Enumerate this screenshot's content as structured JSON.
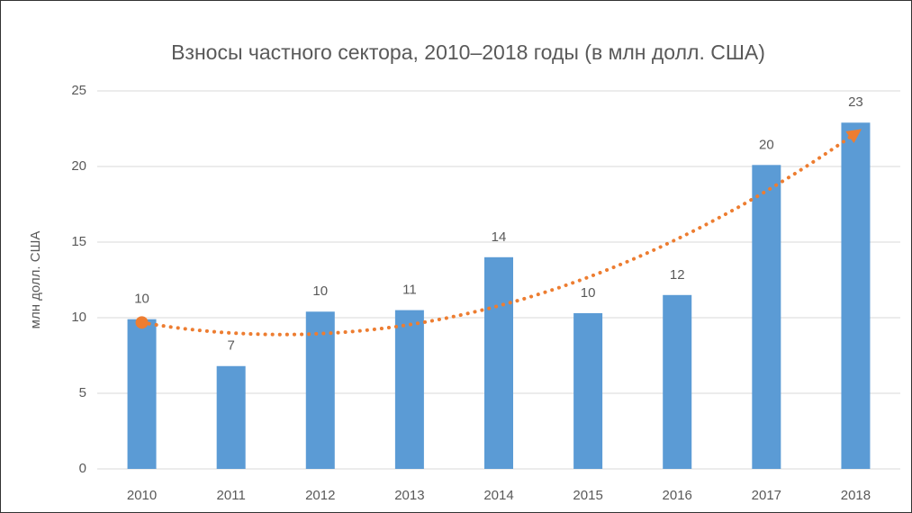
{
  "chart_data": {
    "type": "bar",
    "title": "Взносы частного сектора, 2010–2018 годы (в млн долл. США)",
    "y_label": "млн долл. США",
    "categories": [
      "2010",
      "2011",
      "2012",
      "2013",
      "2014",
      "2015",
      "2016",
      "2017",
      "2018"
    ],
    "values": [
      9.9,
      6.8,
      10.4,
      10.5,
      14.0,
      10.3,
      11.5,
      20.1,
      22.9
    ],
    "value_labels": [
      "10",
      "7",
      "10",
      "11",
      "14",
      "10",
      "12",
      "20",
      "23"
    ],
    "color": "#5b9bd5",
    "ylim": [
      0,
      25
    ],
    "yticks": [
      0,
      5,
      10,
      15,
      20,
      25
    ],
    "grid": true,
    "trendline": {
      "type": "polynomial",
      "order": 2,
      "color": "#ed7d31"
    }
  }
}
